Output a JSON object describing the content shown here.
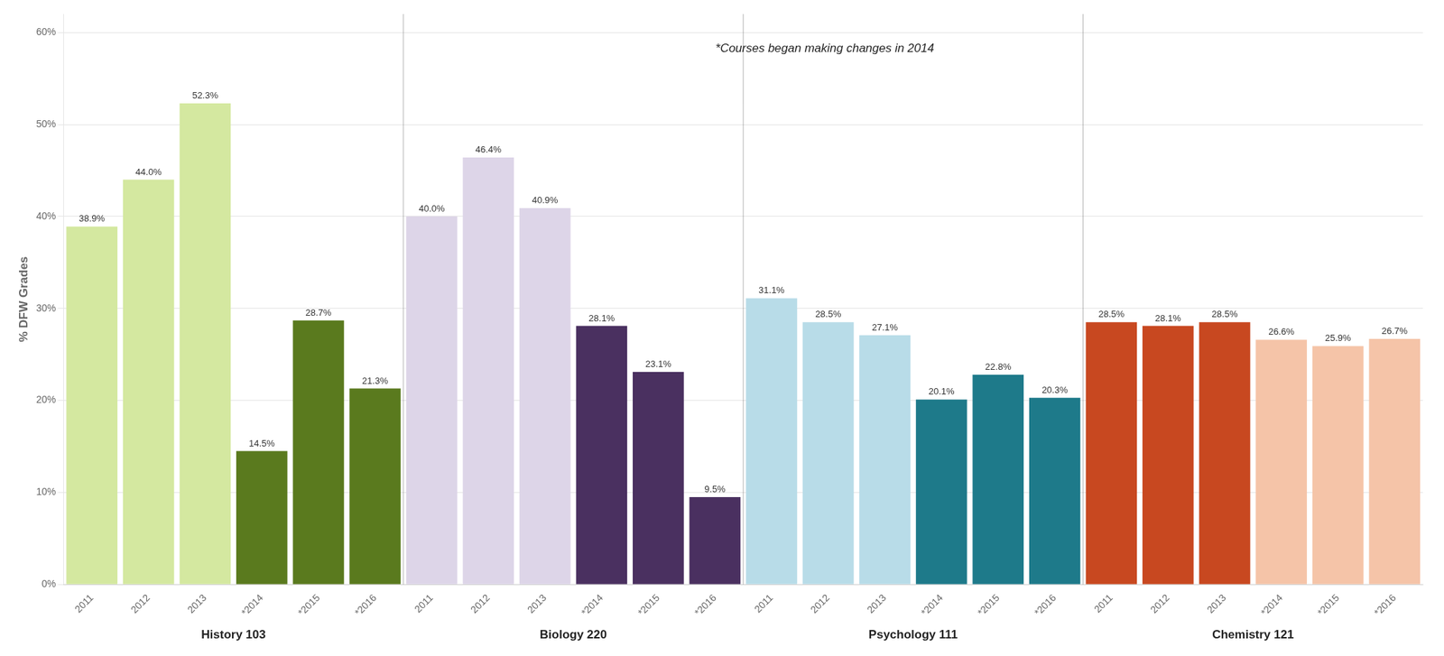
{
  "chart_data": {
    "type": "bar",
    "y_label": "% DFW Grades",
    "annotation": "*Courses began making changes in 2014",
    "groups": [
      {
        "name": "History 103",
        "categories": [
          "2011",
          "2012",
          "2013",
          "*2014",
          "*2015",
          "*2016"
        ],
        "values": [
          38.9,
          44.0,
          52.3,
          14.5,
          28.7,
          21.3
        ],
        "value_labels": [
          "38.9%",
          "44.0%",
          "52.3%",
          "14.5%",
          "28.7%",
          "21.3%"
        ],
        "colors": [
          "#d4e8a0",
          "#d4e8a0",
          "#d4e8a0",
          "#5a7a1e",
          "#5a7a1e",
          "#5a7a1e"
        ]
      },
      {
        "name": "Biology 220",
        "categories": [
          "2011",
          "2012",
          "2013",
          "*2014",
          "*2015",
          "*2016"
        ],
        "values": [
          40.0,
          46.4,
          40.9,
          28.1,
          23.1,
          9.5
        ],
        "value_labels": [
          "40.0%",
          "46.4%",
          "40.9%",
          "28.1%",
          "23.1%",
          "9.5%"
        ],
        "colors": [
          "#ddd5e8",
          "#ddd5e8",
          "#ddd5e8",
          "#4a3060",
          "#4a3060",
          "#4a3060"
        ]
      },
      {
        "name": "Psychology 111",
        "categories": [
          "2011",
          "2012",
          "2013",
          "*2014",
          "*2015",
          "*2016"
        ],
        "values": [
          31.1,
          28.5,
          27.1,
          20.1,
          22.8,
          20.3
        ],
        "value_labels": [
          "31.1%",
          "28.5%",
          "27.1%",
          "20.1%",
          "22.8%",
          "20.3%"
        ],
        "colors": [
          "#b8dce8",
          "#b8dce8",
          "#b8dce8",
          "#1e7a8a",
          "#1e7a8a",
          "#1e7a8a"
        ]
      },
      {
        "name": "Chemistry 121",
        "categories": [
          "2011",
          "2012",
          "2013",
          "*2014",
          "*2015",
          "*2016"
        ],
        "values": [
          28.5,
          28.1,
          28.5,
          26.6,
          25.9,
          26.7
        ],
        "value_labels": [
          "28.5%",
          "28.1%",
          "28.5%",
          "26.6%",
          "25.9%",
          "26.7%"
        ],
        "colors": [
          "#c84820",
          "#c84820",
          "#c84820",
          "#f5c4a8",
          "#f5c4a8",
          "#f5c4a8"
        ]
      }
    ],
    "ylim": [
      0,
      62
    ],
    "yticks": [
      {
        "value": 0,
        "label": "0%"
      },
      {
        "value": 10,
        "label": "10%"
      },
      {
        "value": 20,
        "label": "20%"
      },
      {
        "value": 30,
        "label": "30%"
      },
      {
        "value": 40,
        "label": "40%"
      },
      {
        "value": 50,
        "label": "50%"
      },
      {
        "value": 60,
        "label": "60%"
      }
    ],
    "grid": true,
    "data_labels": true
  }
}
